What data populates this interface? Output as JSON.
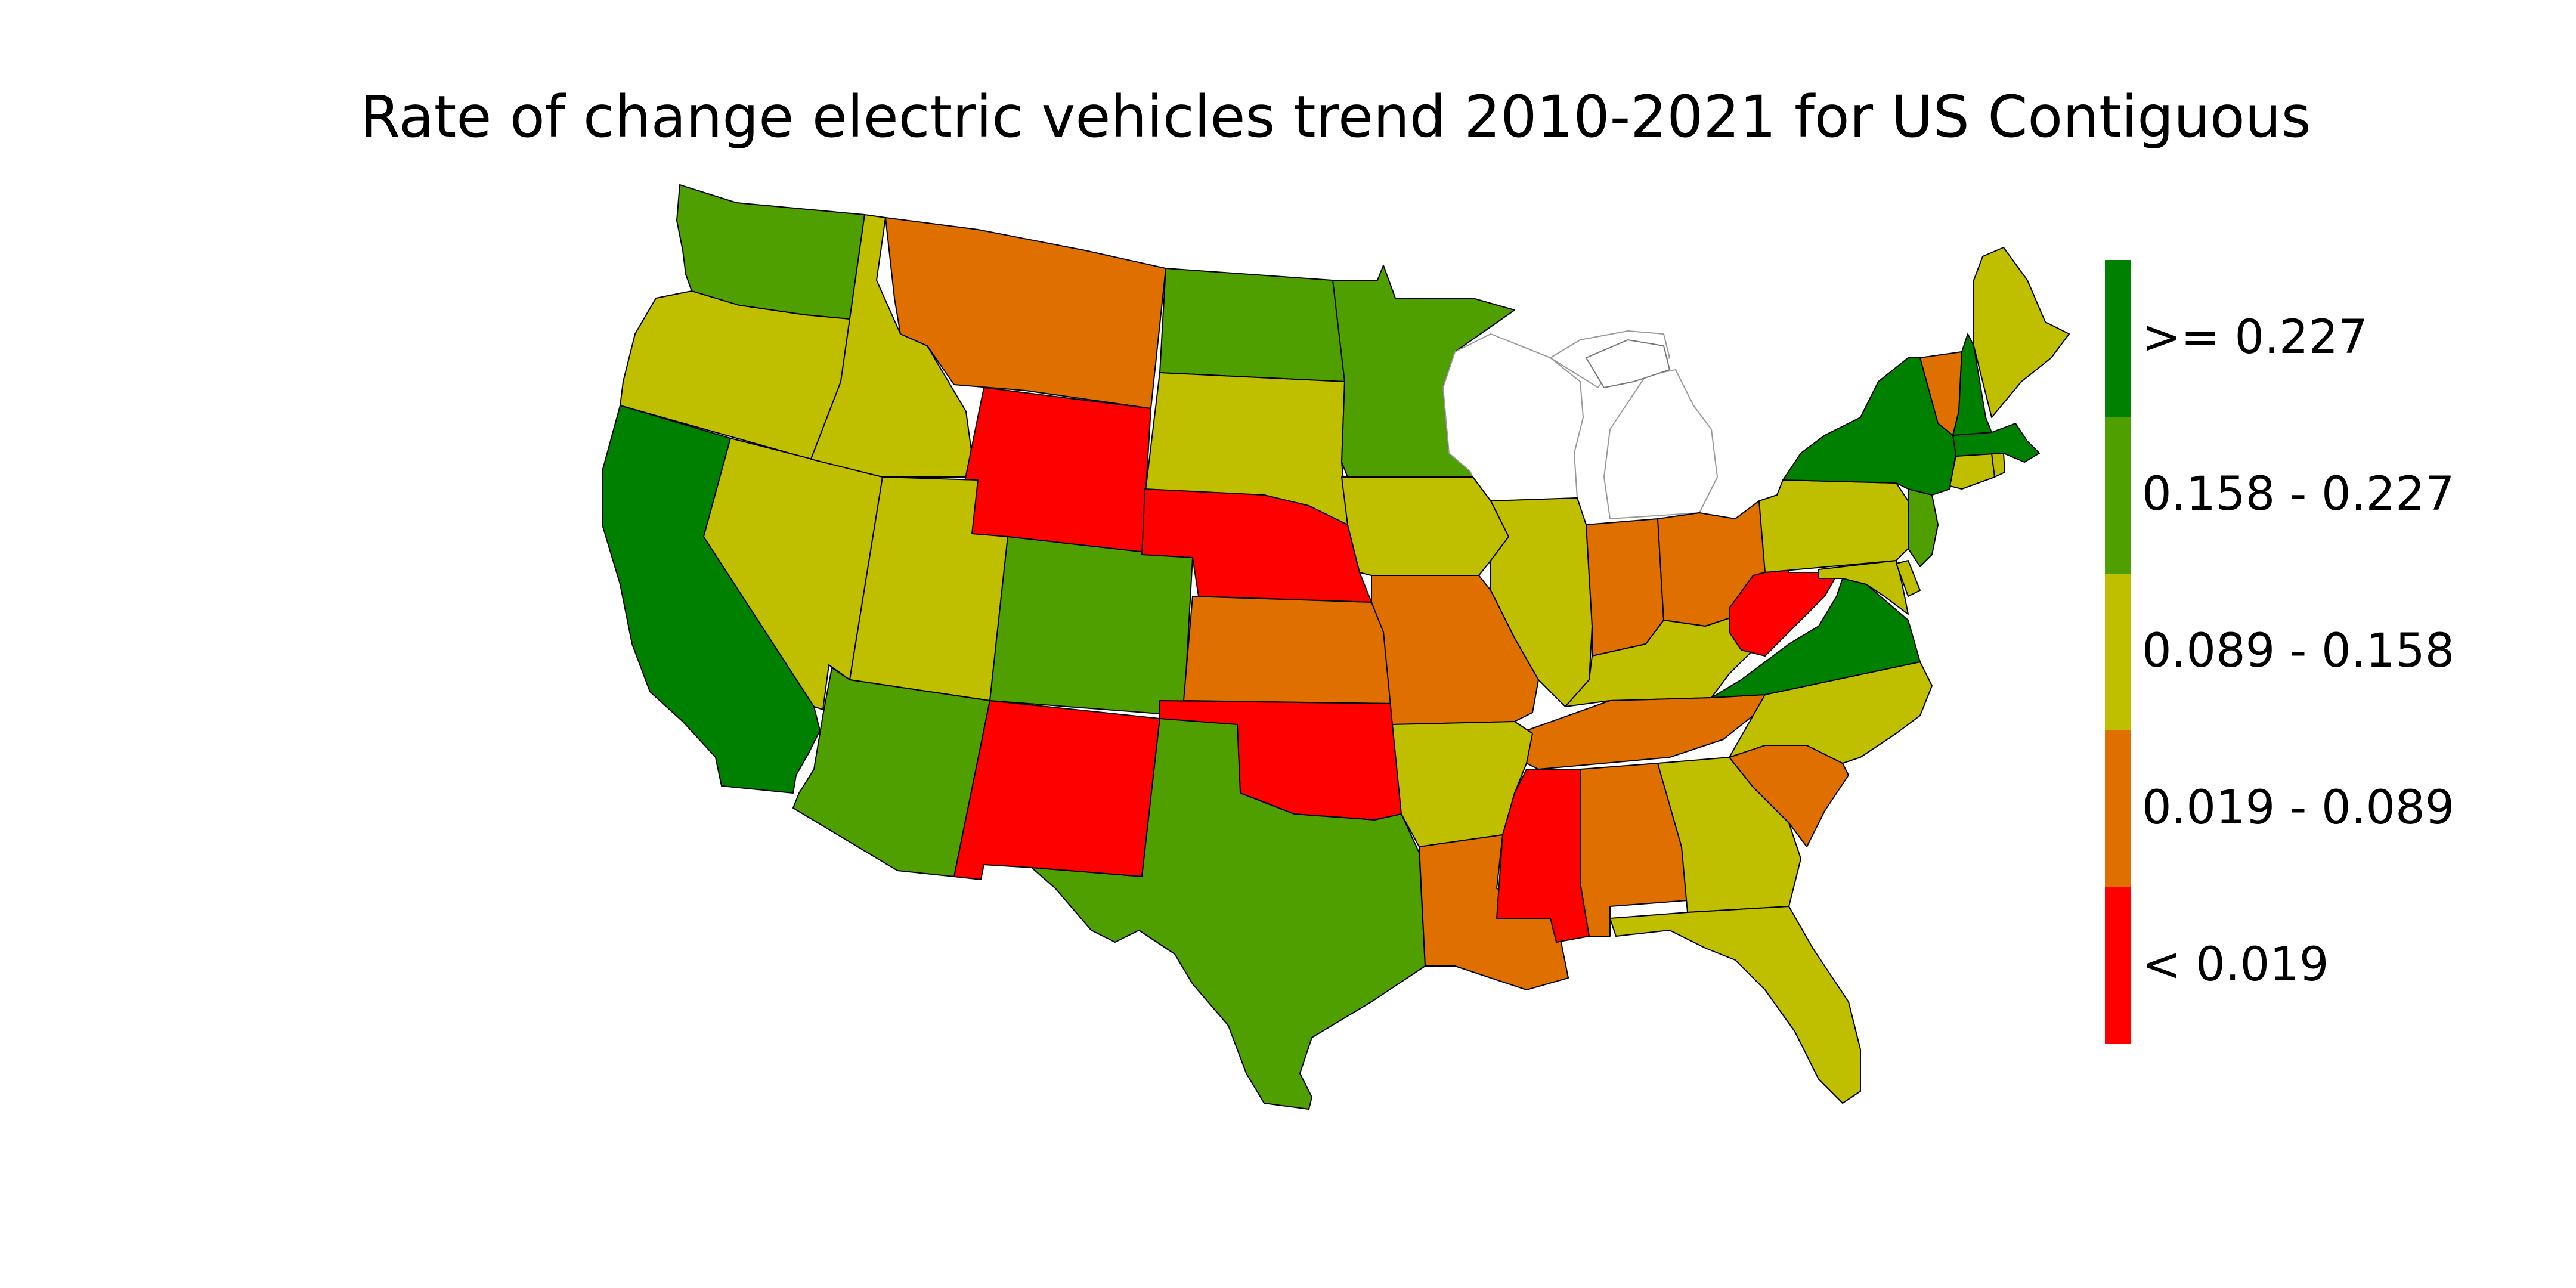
{
  "title": "Rate of change electric vehicles trend 2010-2021 for US Contiguous",
  "legend": {
    "bins": [
      {
        "label": ">= 0.227",
        "color": "#008000"
      },
      {
        "label": "0.158 - 0.227",
        "color": "#4f9f00"
      },
      {
        "label": "0.089 - 0.158",
        "color": "#bfbf00"
      },
      {
        "label": "0.019 - 0.089",
        "color": "#df7000"
      },
      {
        "label": "< 0.019",
        "color": "#ff0000"
      }
    ]
  },
  "colors": {
    "dark_green": "#008000",
    "green": "#4f9f00",
    "yellow": "#bfbf00",
    "orange": "#df7000",
    "red": "#ff0000"
  },
  "states": {
    "WA": "green",
    "OR": "yellow",
    "CA": "dark_green",
    "ID": "yellow",
    "NV": "yellow",
    "MT": "orange",
    "WY": "red",
    "UT": "yellow",
    "AZ": "green",
    "CO": "green",
    "NM": "red",
    "ND": "green",
    "SD": "yellow",
    "NE": "red",
    "KS": "orange",
    "OK": "red",
    "TX": "green",
    "MN": "green",
    "IA": "yellow",
    "MO": "orange",
    "AR": "yellow",
    "LA": "orange",
    "IL": "yellow",
    "MS": "red",
    "AL": "orange",
    "IN": "orange",
    "OH": "orange",
    "KY": "yellow",
    "TN": "orange",
    "MI": "none",
    "WI": "none",
    "GA": "yellow",
    "FL": "yellow",
    "SC": "orange",
    "NC": "yellow",
    "VA": "dark_green",
    "WV": "red",
    "PA": "yellow",
    "NY": "dark_green",
    "NJ": "green",
    "DE": "yellow",
    "MD": "yellow",
    "CT": "yellow",
    "RI": "yellow",
    "MA": "dark_green",
    "VT": "orange",
    "NH": "dark_green",
    "ME": "yellow"
  }
}
